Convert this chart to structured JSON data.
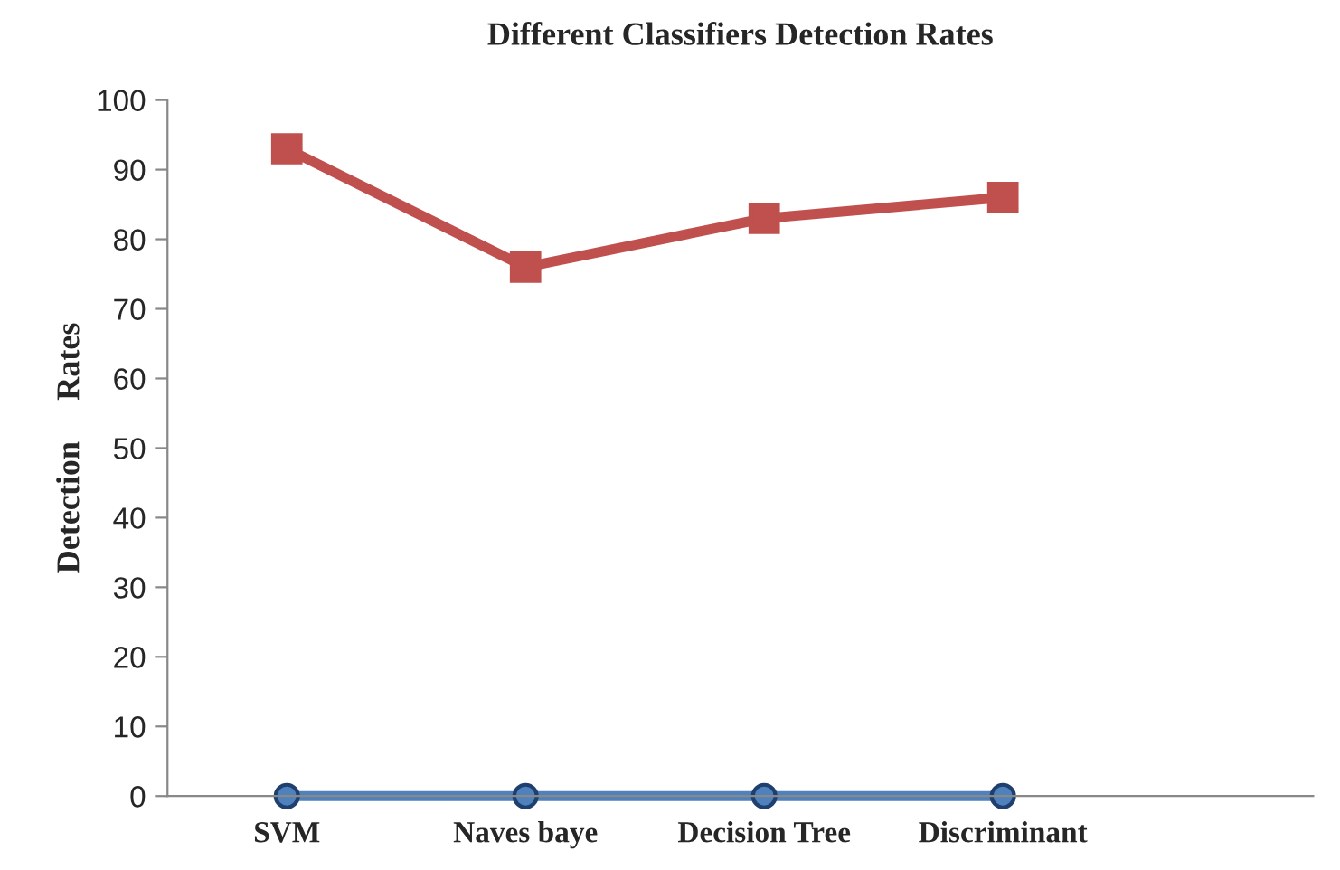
{
  "chart_data": {
    "type": "line",
    "title": "Different Classifiers Detection Rates",
    "ylabel": "Detection     Rates",
    "categories": [
      "SVM",
      "Naves baye",
      "Decision Tree",
      "Discriminant",
      null
    ],
    "series": [
      {
        "color": "#4f81bd",
        "marker": "circle",
        "values": [
          0,
          0,
          0,
          0,
          null
        ]
      },
      {
        "color": "#c0504d",
        "marker": "square",
        "values": [
          93,
          76,
          83,
          86,
          null
        ]
      }
    ],
    "ylim": [
      0,
      100
    ],
    "yticks": [
      0,
      10,
      20,
      30,
      40,
      50,
      60,
      70,
      80,
      90,
      100
    ],
    "grid": false,
    "legend": false
  }
}
